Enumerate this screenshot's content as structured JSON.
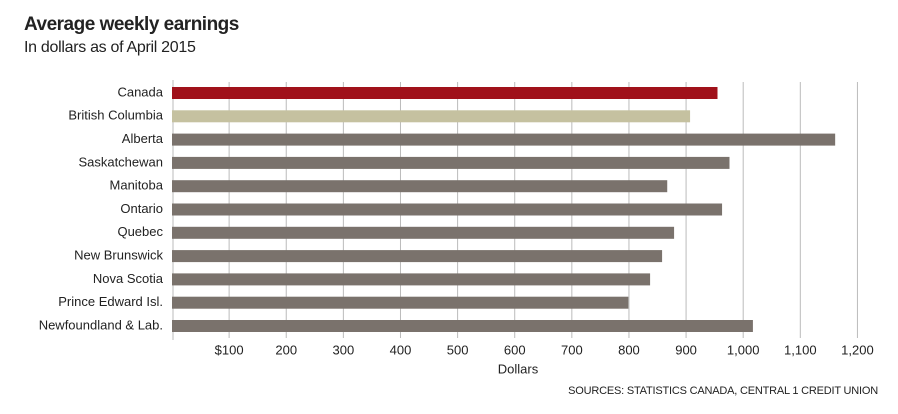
{
  "chart_data": {
    "type": "bar",
    "orientation": "horizontal",
    "title": "Average weekly earnings",
    "subtitle": "In dollars as of April 2015",
    "x_label": "Dollars",
    "source": "SOURCES:  STATISTICS CANADA, CENTRAL 1 CREDIT UNION",
    "categories": [
      "Canada",
      "British Columbia",
      "Alberta",
      "Saskatchewan",
      "Manitoba",
      "Ontario",
      "Quebec",
      "New Brunswick",
      "Nova Scotia",
      "Prince Edward Isl.",
      "Newfoundland & Lab."
    ],
    "values": [
      955,
      907,
      1161,
      976,
      867,
      963,
      879,
      858,
      837,
      799,
      1017
    ],
    "colors": [
      "#a0111a",
      "#c5c1a0",
      "#7a726c",
      "#7a726c",
      "#7a726c",
      "#7a726c",
      "#7a726c",
      "#7a726c",
      "#7a726c",
      "#7a726c",
      "#7a726c"
    ],
    "xlim": [
      0,
      1250
    ],
    "xticks": [
      {
        "value": 100,
        "label": "$100"
      },
      200,
      300,
      400,
      500,
      600,
      700,
      800,
      900,
      {
        "value": 1000,
        "label": "1,000"
      },
      {
        "value": 1100,
        "label": "1,100"
      },
      {
        "value": 1200,
        "label": "1,200"
      }
    ],
    "grid": true
  }
}
